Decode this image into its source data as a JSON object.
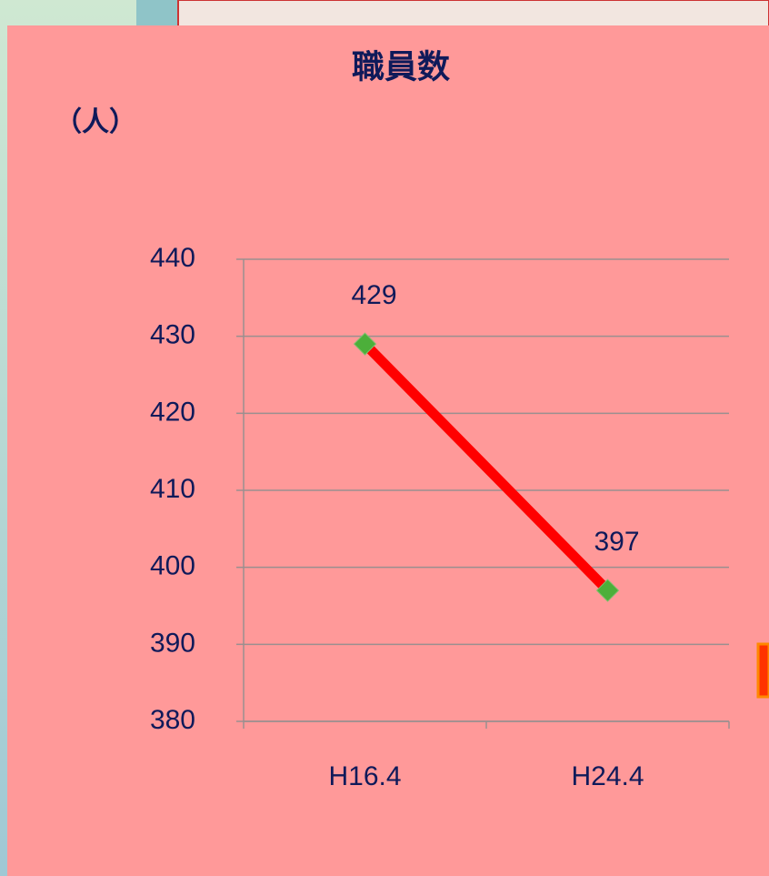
{
  "chart_data": {
    "type": "line",
    "title": "職員数",
    "y_label": "（人）",
    "categories": [
      "H16.4",
      "H24.4"
    ],
    "series": [
      {
        "name": "職員数",
        "color": "#ff0000",
        "marker_color": "#4caf3a",
        "values": [
          429,
          397
        ]
      }
    ],
    "ylim": [
      380,
      440
    ],
    "yticks": [
      380,
      390,
      400,
      410,
      420,
      430,
      440
    ],
    "grid": true
  }
}
